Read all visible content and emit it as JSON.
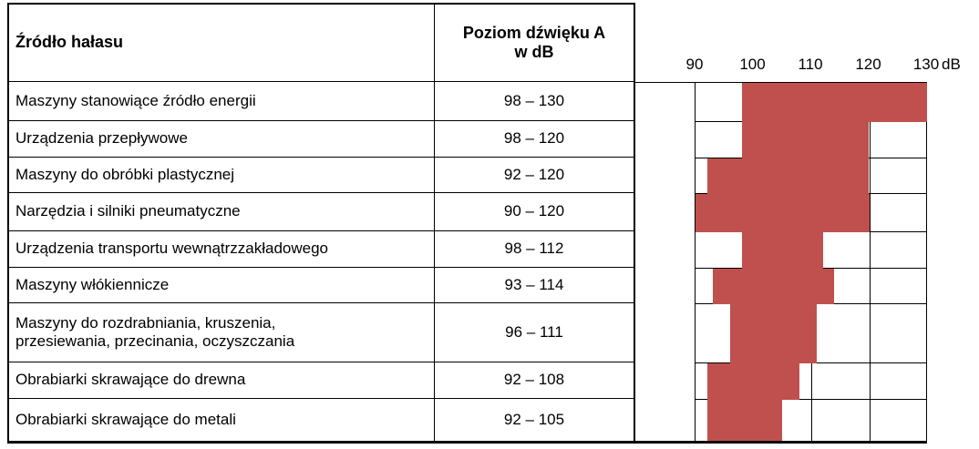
{
  "table": {
    "col1_header": "Źródło hałasu",
    "col2_header": "Poziom dźwięku A\nw dB",
    "rows": [
      {
        "source": "Maszyny stanowiące źródło energii",
        "range": "98 – 130"
      },
      {
        "source": "Urządzenia przepływowe",
        "range": "98 – 120"
      },
      {
        "source": "Maszyny do obróbki plastycznej",
        "range": "92 – 120"
      },
      {
        "source": "Narzędzia i silniki pneumatyczne",
        "range": "90 – 120"
      },
      {
        "source": "Urządzenia transportu wewnątrzzakładowego",
        "range": "98 – 112"
      },
      {
        "source": "Maszyny włókiennicze",
        "range": "93 – 114"
      },
      {
        "source": "Maszyny do rozdrabniania, kruszenia,\nprzesiewania, przecinania, oczyszczania",
        "range": "96 – 111"
      },
      {
        "source": "Obrabiarki skrawające do drewna",
        "range": "92 – 108"
      },
      {
        "source": "Obrabiarki skrawające do metali",
        "range": "92 – 105"
      }
    ]
  },
  "chart_data": {
    "type": "bar",
    "orientation": "horizontal-range",
    "title": "",
    "xlabel": "dB",
    "ylabel": "",
    "categories": [
      "Maszyny stanowiące źródło energii",
      "Urządzenia przepływowe",
      "Maszyny do obróbki plastycznej",
      "Narzędzia i silniki pneumatyczne",
      "Urządzenia transportu wewnątrzzakładowego",
      "Maszyny włókiennicze",
      "Maszyny do rozdrabniania, kruszenia, przesiewania, przecinania, oczyszczania",
      "Obrabiarki skrawające do drewna",
      "Obrabiarki skrawające do metali"
    ],
    "series": [
      {
        "name": "Poziom dźwięku A w dB",
        "ranges": [
          [
            98,
            130
          ],
          [
            98,
            120
          ],
          [
            92,
            120
          ],
          [
            90,
            120
          ],
          [
            98,
            112
          ],
          [
            93,
            114
          ],
          [
            96,
            111
          ],
          [
            92,
            108
          ],
          [
            92,
            105
          ]
        ]
      }
    ],
    "xlim": [
      90,
      130
    ],
    "ticks": [
      90,
      100,
      110,
      120,
      130
    ],
    "tick_labels": [
      "90",
      "100",
      "110",
      "120",
      "130"
    ],
    "axis_unit_label": "dB",
    "grid": true,
    "legend": "none",
    "bar_color": "#C0504D",
    "line_color": "#000000"
  }
}
